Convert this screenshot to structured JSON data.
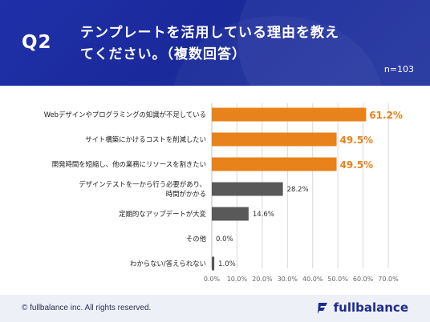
{
  "header": {
    "question_label": "Q2",
    "title": "テンプレートを活用している理由を教えてください。（複数回答）",
    "sample_size": "n=103"
  },
  "chart_data": {
    "type": "bar",
    "orientation": "horizontal",
    "categories": [
      "Webデザインやプログラミングの知識が不足している",
      "サイト構築にかけるコストを削減したい",
      "開発時間を短縮し、他の業務にリソースを割きたい",
      "デザインテストを一から行う必要があり、\n時間がかかる",
      "定期的なアップデートが大変",
      "その他",
      "わからない/答えられない"
    ],
    "values": [
      61.2,
      49.5,
      49.5,
      28.2,
      14.6,
      0.0,
      1.0
    ],
    "value_labels": [
      "61.2%",
      "49.5%",
      "49.5%",
      "28.2%",
      "14.6%",
      "0.0%",
      "1.0%"
    ],
    "xlim": [
      0,
      70
    ],
    "ticks": [
      0,
      10,
      20,
      30,
      40,
      50,
      60,
      70
    ],
    "tick_labels": [
      "0.0%",
      "10.0%",
      "20.0%",
      "30.0%",
      "40.0%",
      "50.0%",
      "60.0%",
      "70.0%"
    ],
    "highlight_count": 3,
    "colors": {
      "highlight": "#e8821a",
      "normal": "#595959",
      "grid": "#d9d9d9",
      "text": "#222222"
    },
    "grid": true
  },
  "footer": {
    "copyright": "© fullbalance inc. All rights reserved.",
    "brand": "fullbalance",
    "brand_color": "#1d2b8f"
  }
}
